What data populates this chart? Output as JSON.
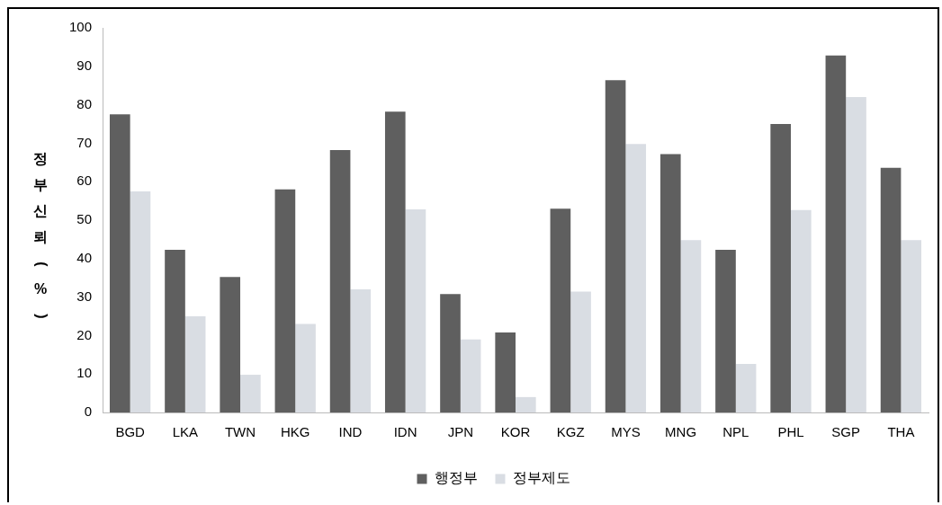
{
  "chart_data": {
    "type": "bar",
    "ylabel": "정부신뢰(%)",
    "categories": [
      "BGD",
      "LKA",
      "TWN",
      "HKG",
      "IND",
      "IDN",
      "JPN",
      "KOR",
      "KGZ",
      "MYS",
      "MNG",
      "NPL",
      "PHL",
      "SGP",
      "THA"
    ],
    "series": [
      {
        "name": "행정부",
        "color": "#5f5f5f",
        "values": [
          77.5,
          42.3,
          35.2,
          58,
          68.2,
          78.2,
          30.8,
          20.8,
          53,
          86.4,
          67.2,
          42.3,
          75,
          92.8,
          63.6
        ]
      },
      {
        "name": "정부제도",
        "color": "#d9dde3",
        "values": [
          57.5,
          25,
          9.8,
          23,
          32,
          52.8,
          19,
          4,
          31.4,
          69.8,
          44.8,
          12.6,
          52.6,
          82,
          44.8
        ]
      }
    ],
    "ylim": [
      0,
      100
    ],
    "yticks": [
      0,
      10,
      20,
      30,
      40,
      50,
      60,
      70,
      80,
      90,
      100
    ],
    "grid": false,
    "legend": "bottom"
  }
}
